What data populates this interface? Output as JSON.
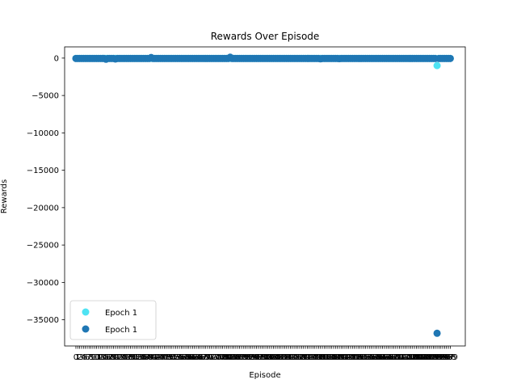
{
  "chart_data": {
    "type": "scatter",
    "title": "Rewards Over Episode",
    "xlabel": "Episode",
    "ylabel": "Rewards",
    "xlim": [
      -6,
      207
    ],
    "ylim": [
      -38500,
      1500
    ],
    "yticks": [
      0,
      -5000,
      -10000,
      -15000,
      -20000,
      -25000,
      -30000,
      -35000
    ],
    "ytick_labels": [
      "0",
      "−5000",
      "−10000",
      "−15000",
      "−20000",
      "−25000",
      "−30000",
      "−35000"
    ],
    "x_tick_count": 200,
    "x_tick_labels_note": "dense overlapping integer labels from 0 to 199",
    "grid": false,
    "legend": "lower-left",
    "series": [
      {
        "name": "Epoch 1",
        "color": "#4ee3f3",
        "baseline": -40,
        "outliers": [
          {
            "x": 192,
            "y": -1000
          }
        ]
      },
      {
        "name": "Epoch 1",
        "color": "#1f77b4",
        "baseline": -50,
        "outliers": [
          {
            "x": 16,
            "y": -150
          },
          {
            "x": 21,
            "y": -120
          },
          {
            "x": 40,
            "y": 80
          },
          {
            "x": 82,
            "y": 120
          },
          {
            "x": 130,
            "y": -100
          },
          {
            "x": 140,
            "y": -80
          },
          {
            "x": 151,
            "y": -60
          },
          {
            "x": 192,
            "y": -36800
          }
        ]
      }
    ]
  }
}
